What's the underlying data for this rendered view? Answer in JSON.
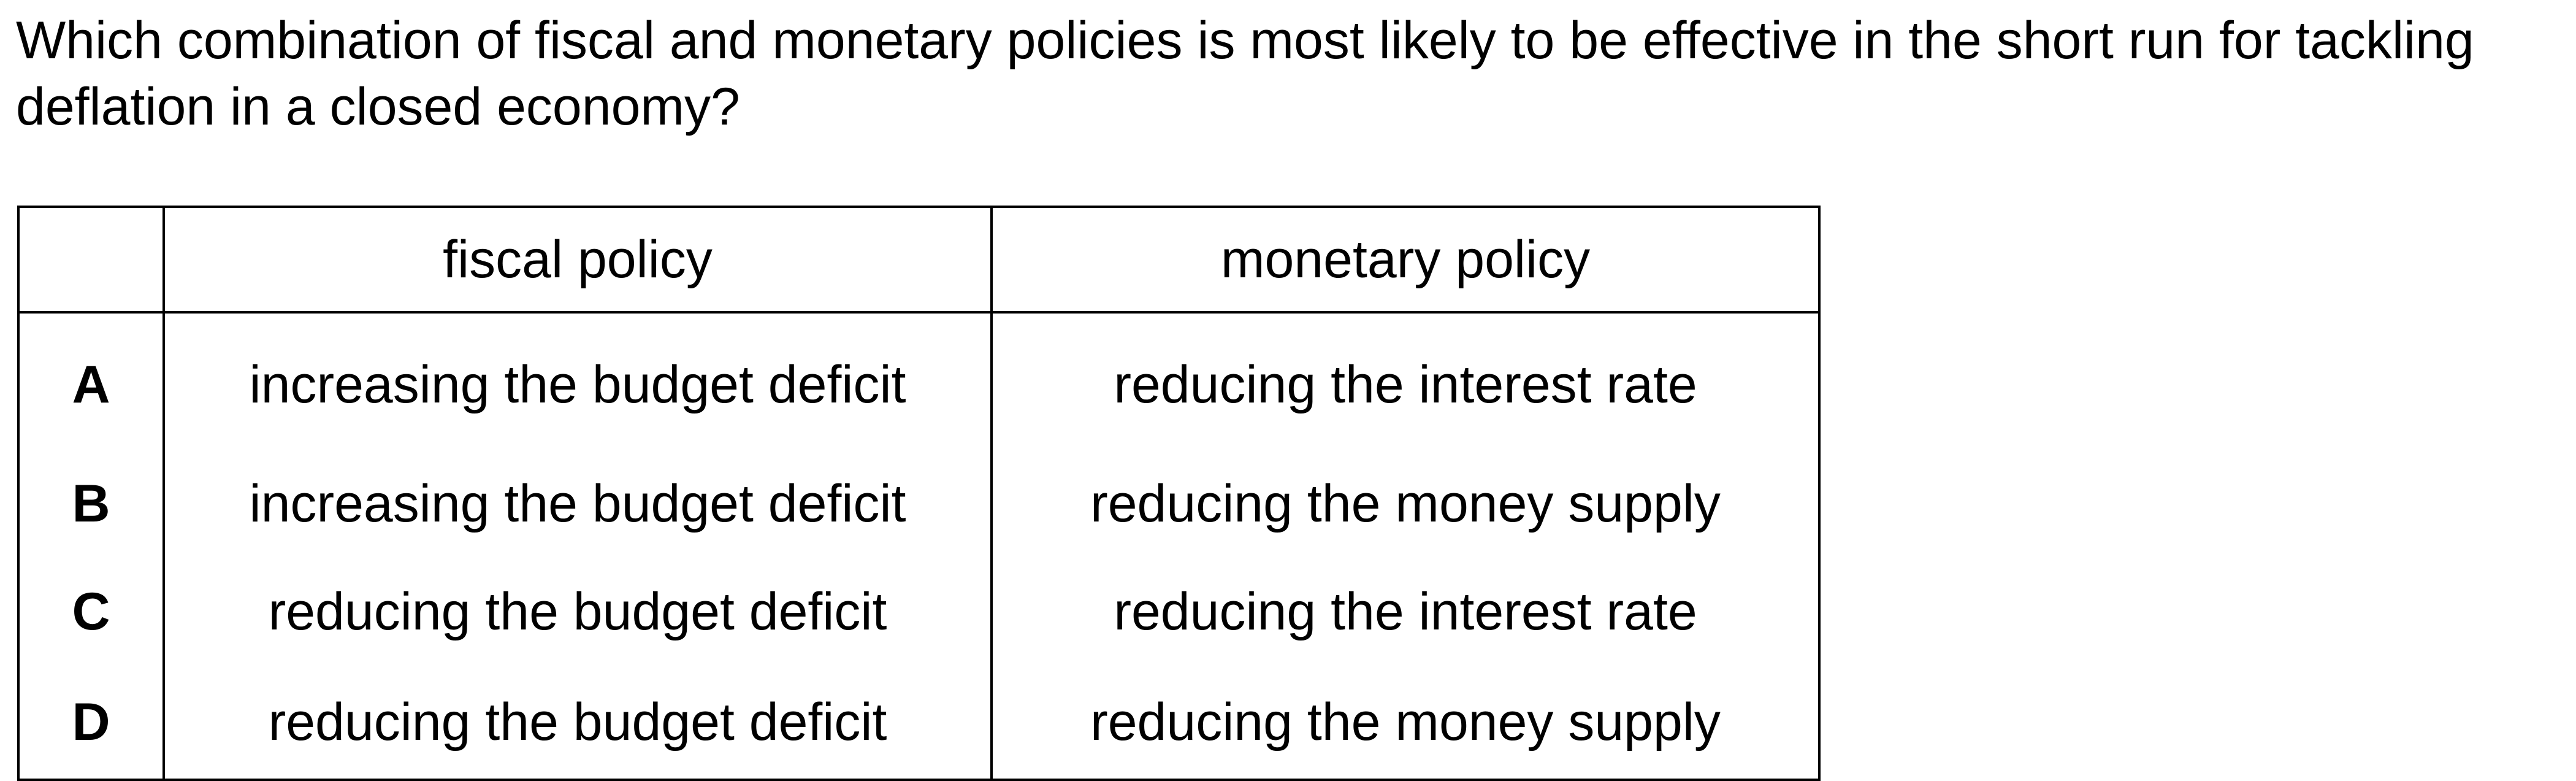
{
  "question": {
    "text": "Which combination of fiscal and monetary policies is most likely to be effective in the short run for tackling deflation in a closed economy?"
  },
  "table": {
    "headers": {
      "letter": "",
      "fiscal": "fiscal policy",
      "monetary": "monetary policy"
    },
    "rows": [
      {
        "letter": "A",
        "fiscal": "increasing the budget deficit",
        "monetary": "reducing the interest rate"
      },
      {
        "letter": "B",
        "fiscal": "increasing the budget deficit",
        "monetary": "reducing the money supply"
      },
      {
        "letter": "C",
        "fiscal": "reducing the budget deficit",
        "monetary": "reducing the interest rate"
      },
      {
        "letter": "D",
        "fiscal": "reducing the budget deficit",
        "monetary": "reducing the money supply"
      }
    ]
  }
}
